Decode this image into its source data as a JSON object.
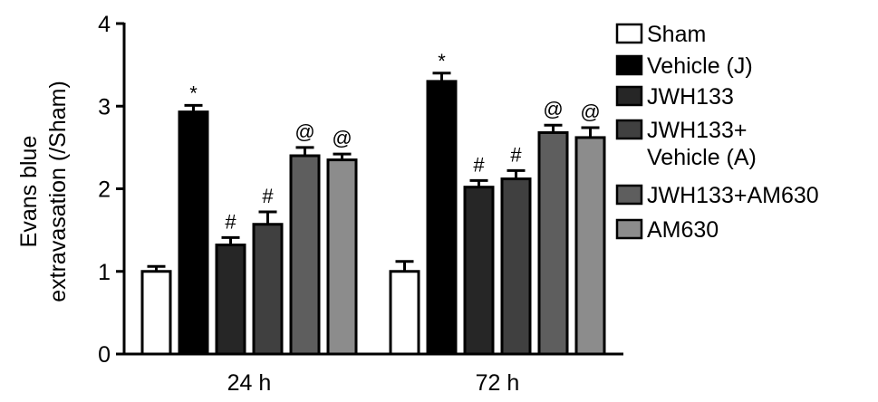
{
  "chart_data": {
    "type": "bar",
    "ylabel": "Evans blue extravasation (/Sham)",
    "ylabel_lines": [
      "Evans blue",
      "extravasation (/Sham)"
    ],
    "categories": [
      "24 h",
      "72 h"
    ],
    "ylim": [
      0,
      4
    ],
    "yticks": [
      0,
      1,
      2,
      3,
      4
    ],
    "legend_position": "right",
    "grid": false,
    "series": [
      {
        "name": "Sham",
        "name_lines": [
          "Sham"
        ],
        "color": "#ffffff",
        "values": [
          1.0,
          1.0
        ],
        "errors": [
          0.06,
          0.12
        ],
        "annotations": [
          "",
          ""
        ]
      },
      {
        "name": "Vehicle (J)",
        "name_lines": [
          "Vehicle (J)"
        ],
        "color": "#000000",
        "values": [
          2.93,
          3.3
        ],
        "errors": [
          0.08,
          0.1
        ],
        "annotations": [
          "*",
          "*"
        ]
      },
      {
        "name": "JWH133",
        "name_lines": [
          "JWH133"
        ],
        "color": "#262626",
        "values": [
          1.32,
          2.02
        ],
        "errors": [
          0.09,
          0.08
        ],
        "annotations": [
          "#",
          "#"
        ]
      },
      {
        "name": "JWH133+ Vehicle (A)",
        "name_lines": [
          "JWH133+",
          "Vehicle (A)"
        ],
        "color": "#404040",
        "values": [
          1.57,
          2.12
        ],
        "errors": [
          0.15,
          0.1
        ],
        "annotations": [
          "#",
          "#"
        ]
      },
      {
        "name": "JWH133+AM630",
        "name_lines": [
          "JWH133+AM630"
        ],
        "color": "#5e5e5e",
        "values": [
          2.4,
          2.68
        ],
        "errors": [
          0.1,
          0.09
        ],
        "annotations": [
          "@",
          "@"
        ]
      },
      {
        "name": "AM630",
        "name_lines": [
          "AM630"
        ],
        "color": "#8c8c8c",
        "values": [
          2.35,
          2.62
        ],
        "errors": [
          0.07,
          0.12
        ],
        "annotations": [
          "@",
          "@"
        ]
      }
    ]
  }
}
